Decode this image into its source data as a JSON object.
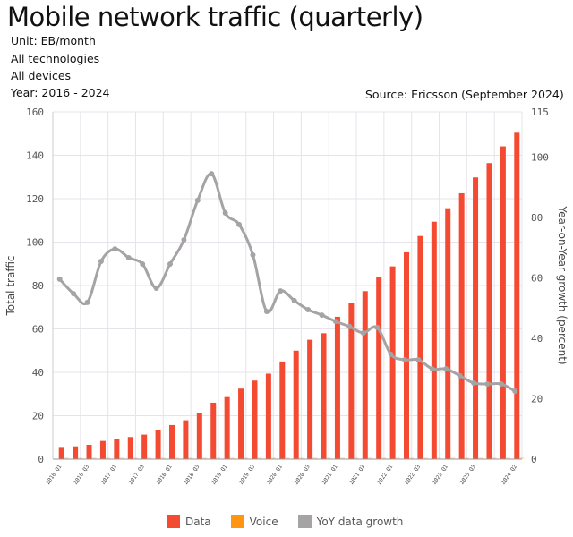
{
  "header": {
    "title": "Mobile network traffic (quarterly)",
    "unit": "Unit: EB/month",
    "technologies": "All technologies",
    "devices": "All devices",
    "years": "Year: 2016 - 2024",
    "source": "Source: Ericsson (September 2024)"
  },
  "colors": {
    "data": "#f44a32",
    "voice": "#ff9510",
    "yoy": "#a5a3a3"
  },
  "chart_data": {
    "type": "bar+line",
    "ylabel": "Total traffic",
    "y2label": "Year-on-Year growth (percent)",
    "ylim": [
      0,
      160
    ],
    "yticks": [
      0,
      20,
      40,
      60,
      80,
      100,
      120,
      140,
      160
    ],
    "y2lim": [
      0,
      115
    ],
    "y2ticks": [
      0,
      20,
      40,
      60,
      80,
      100,
      115
    ],
    "grid": true,
    "legend": "bottom",
    "categories": [
      "2016 Q1",
      "2016 Q2",
      "2016 Q3",
      "2016 Q4",
      "2017 Q1",
      "2017 Q2",
      "2017 Q3",
      "2017 Q4",
      "2018 Q1",
      "2018 Q2",
      "2018 Q3",
      "2018 Q4",
      "2019 Q1",
      "2019 Q2",
      "2019 Q3",
      "2019 Q4",
      "2020 Q1",
      "2020 Q2",
      "2020 Q3",
      "2020 Q4",
      "2021 Q1",
      "2021 Q2",
      "2021 Q3",
      "2021 Q4",
      "2022 Q1",
      "2022 Q2",
      "2022 Q3",
      "2022 Q4",
      "2023 Q1",
      "2023 Q2",
      "2023 Q3",
      "2023 Q4",
      "2024 Q1",
      "2024 Q2"
    ],
    "tick_labels": [
      "2016 Q1",
      "2016 Q3",
      "2017 Q1",
      "2017 Q3",
      "2018 Q1",
      "2018 Q3",
      "2019 Q1",
      "2019 Q3",
      "2020 Q1",
      "2020 Q3",
      "2021 Q1",
      "2021 Q3",
      "2022 Q1",
      "2022 Q3",
      "2023 Q1",
      "2023 Q3",
      "2024 Q2"
    ],
    "series": [
      {
        "name": "Data",
        "type": "bar",
        "axis": "left",
        "values": [
          5.2,
          5.9,
          6.6,
          8.4,
          9.2,
          10.2,
          11.3,
          13.2,
          15.7,
          17.9,
          21.4,
          26,
          28.6,
          32.5,
          36.2,
          39.4,
          45,
          50,
          55,
          58,
          65.6,
          71.8,
          77.4,
          83.7,
          88.8,
          95.3,
          102.8,
          109.4,
          115.6,
          122.5,
          129.8,
          136.4,
          144.1,
          150.4
        ]
      },
      {
        "name": "Voice",
        "type": "bar",
        "axis": "left",
        "values": [
          0.8,
          0.8,
          0.8,
          0.8,
          0.8,
          0.8,
          0.8,
          0.8,
          0.8,
          0.8,
          0.8,
          0.8,
          0.8,
          0.8,
          0.8,
          0.8,
          0.8,
          0.8,
          0.8,
          0.8,
          0.8,
          0.8,
          0.8,
          0.8,
          0.8,
          0.8,
          0.8,
          0.8,
          0.8,
          0.8,
          0.8,
          0.8,
          0.8,
          0.8
        ]
      },
      {
        "name": "YoY data growth",
        "type": "line",
        "axis": "right",
        "values": [
          59.6,
          54.8,
          51.9,
          65.5,
          69.6,
          66.7,
          64.6,
          56.6,
          64.6,
          72.6,
          85.7,
          94.5,
          81.5,
          77.7,
          67.6,
          48.9,
          55.7,
          52.5,
          49.5,
          47.7,
          45.6,
          43.9,
          41.8,
          43.6,
          34.7,
          32.9,
          32.9,
          29.9,
          29.9,
          27.6,
          25.2,
          24.9,
          24.9,
          22.5
        ]
      }
    ]
  }
}
